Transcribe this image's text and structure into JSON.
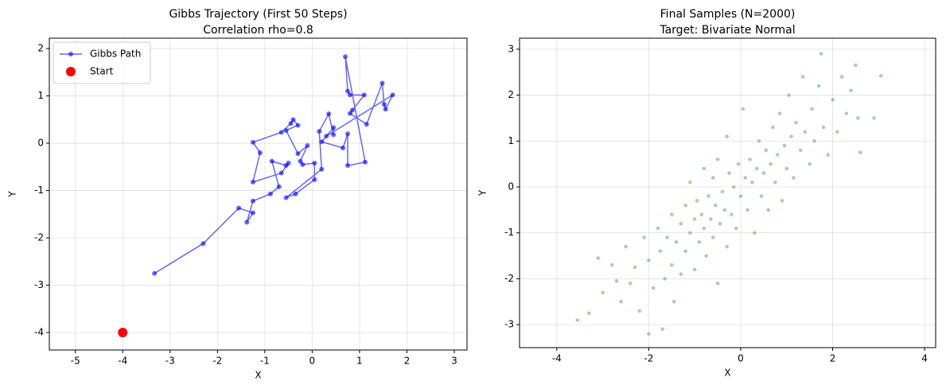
{
  "chart_data": [
    {
      "type": "line",
      "title": "Gibbs Trajectory (First 50 Steps)",
      "subtitle": "Correlation rho=0.8",
      "x_label": "X",
      "y_label": "Y",
      "xlim": [
        -5.55,
        3.27
      ],
      "ylim": [
        -4.37,
        2.22
      ],
      "xticks": [
        -5,
        -4,
        -3,
        -2,
        -1,
        0,
        1,
        2,
        3
      ],
      "yticks": [
        -4,
        -3,
        -2,
        -1,
        0,
        1,
        2
      ],
      "grid": true,
      "legend": "upper left",
      "series": [
        {
          "name": "Gibbs Path",
          "color": "#0000ff",
          "marker": "line",
          "x": [
            -3.33,
            -2.3,
            -1.55,
            -1.25,
            -1.38,
            -1.25,
            -0.88,
            -0.7,
            -0.85,
            -0.55,
            -0.5,
            -0.65,
            -1.25,
            -1.1,
            -1.25,
            -0.65,
            -0.45,
            -0.4,
            -0.3,
            -0.55,
            -0.3,
            -0.1,
            -0.25,
            -0.2,
            0.05,
            0.05,
            -0.35,
            -0.55,
            0.2,
            0.15,
            0.35,
            0.45,
            0.45,
            0.2,
            0.65,
            0.75,
            0.75,
            1.12,
            0.7,
            0.75,
            0.8,
            1.1,
            0.85,
            0.8,
            1.15,
            1.48,
            1.52,
            1.55,
            1.7,
            0.3
          ],
          "values": [
            -2.75,
            -2.12,
            -1.37,
            -1.47,
            -1.67,
            -1.22,
            -1.07,
            -0.92,
            -0.38,
            -0.47,
            -0.42,
            -0.63,
            -0.82,
            -0.2,
            0.02,
            0.23,
            0.42,
            0.5,
            0.38,
            0.27,
            -0.22,
            -0.05,
            -0.38,
            -0.45,
            -0.42,
            -0.77,
            -1.07,
            -1.15,
            -0.55,
            0.25,
            0.62,
            0.18,
            0.33,
            0.03,
            -0.1,
            0.2,
            -0.47,
            -0.4,
            1.83,
            1.1,
            1.02,
            1.02,
            0.7,
            0.63,
            0.4,
            1.27,
            0.82,
            0.72,
            1.02,
            0.15
          ]
        },
        {
          "name": "Start",
          "color": "#ff0000",
          "marker": "point",
          "x": [
            -4
          ],
          "values": [
            -4
          ]
        }
      ]
    },
    {
      "type": "scatter",
      "title": "Final Samples (N=2000)",
      "subtitle": "Target: Bivariate Normal",
      "x_label": "X",
      "y_label": "Y",
      "xlim": [
        -4.81,
        4.24
      ],
      "ylim": [
        -3.5,
        3.24
      ],
      "xticks": [
        -4,
        -2,
        0,
        2,
        4
      ],
      "yticks": [
        -3,
        -2,
        -1,
        0,
        1,
        2,
        3
      ],
      "grid": true,
      "series": [
        {
          "color": "#008000",
          "x": [
            -3.55,
            -3.3,
            -3.1,
            -3.0,
            -2.8,
            -2.7,
            -2.6,
            -2.5,
            -2.4,
            -2.3,
            -2.2,
            -2.1,
            -2.0,
            -2.0,
            -1.9,
            -1.8,
            -1.75,
            -1.7,
            -1.65,
            -1.6,
            -1.5,
            -1.5,
            -1.45,
            -1.4,
            -1.3,
            -1.3,
            -1.2,
            -1.2,
            -1.1,
            -1.1,
            -1.0,
            -1.0,
            -0.95,
            -0.9,
            -0.85,
            -0.8,
            -0.8,
            -0.75,
            -0.7,
            -0.65,
            -0.6,
            -0.6,
            -0.55,
            -0.5,
            -0.5,
            -0.45,
            -0.4,
            -0.35,
            -0.3,
            -0.3,
            -0.25,
            -0.2,
            -0.15,
            -0.1,
            -0.05,
            0.0,
            0.05,
            0.1,
            0.15,
            0.2,
            0.25,
            0.3,
            0.35,
            0.4,
            0.45,
            0.5,
            0.55,
            0.6,
            0.65,
            0.7,
            0.75,
            0.8,
            0.85,
            0.9,
            0.95,
            1.0,
            1.05,
            1.1,
            1.15,
            1.2,
            1.3,
            1.35,
            1.4,
            1.5,
            1.55,
            1.6,
            1.7,
            1.75,
            1.8,
            1.9,
            2.0,
            2.1,
            2.2,
            2.3,
            2.4,
            2.5,
            2.55,
            2.6,
            2.9,
            3.05
          ],
          "values": [
            -2.9,
            -2.75,
            -1.55,
            -2.3,
            -1.7,
            -2.05,
            -2.5,
            -1.3,
            -2.1,
            -1.75,
            -2.7,
            -1.1,
            -3.2,
            -1.6,
            -2.2,
            -0.9,
            -1.4,
            -3.1,
            -2.0,
            -1.1,
            -0.6,
            -1.7,
            -2.5,
            -1.2,
            -0.8,
            -1.9,
            -0.4,
            -1.4,
            -1.0,
            0.1,
            -0.7,
            -1.8,
            -0.3,
            -1.2,
            -0.6,
            0.4,
            -0.9,
            -1.5,
            -0.2,
            -0.7,
            0.2,
            -1.1,
            -0.4,
            -2.1,
            0.6,
            -0.8,
            -0.1,
            -0.5,
            1.1,
            -1.3,
            0.3,
            -0.6,
            0.0,
            -0.9,
            0.5,
            -0.2,
            1.7,
            0.2,
            -0.5,
            0.6,
            0.1,
            -1.0,
            0.4,
            1.0,
            -0.2,
            0.3,
            0.8,
            -0.5,
            0.5,
            1.3,
            0.1,
            0.7,
            1.6,
            -0.3,
            0.9,
            0.4,
            2.0,
            1.1,
            0.2,
            1.4,
            0.8,
            2.4,
            1.2,
            0.5,
            1.7,
            1.0,
            2.2,
            2.9,
            1.3,
            0.7,
            1.9,
            1.2,
            2.4,
            1.6,
            2.1,
            2.65,
            1.5,
            0.75,
            1.5,
            2.42
          ]
        }
      ]
    }
  ]
}
